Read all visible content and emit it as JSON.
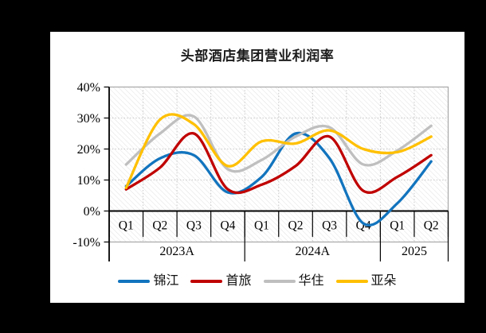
{
  "window": {
    "background_color": "#000000",
    "panel_color": "#ffffff"
  },
  "chart_data": {
    "type": "line",
    "smooth": true,
    "title": "头部酒店集团营业利润率",
    "unit": "%",
    "grid": "dotted",
    "plot_fill": "diagonal-hatch",
    "legend_position": "bottom",
    "y_axis": {
      "min": -10,
      "max": 40,
      "step": 10,
      "ticks": [
        "40%",
        "30%",
        "20%",
        "10%",
        "0%",
        "-10%"
      ],
      "tick_values": [
        40,
        30,
        20,
        10,
        0,
        -10
      ]
    },
    "x_axis": {
      "quarters": [
        "Q1",
        "Q2",
        "Q3",
        "Q4",
        "Q1",
        "Q2",
        "Q3",
        "Q4",
        "Q1",
        "Q2"
      ],
      "year_groups": [
        {
          "label": "2023A",
          "span": 4
        },
        {
          "label": "2024A",
          "span": 4
        },
        {
          "label": "2025",
          "span": 2
        }
      ]
    },
    "categories": [
      "2023Q1",
      "2023Q2",
      "2023Q3",
      "2023Q4",
      "2024Q1",
      "2024Q2",
      "2024Q3",
      "2024Q4",
      "2025Q1",
      "2025Q2"
    ],
    "series": [
      {
        "name": "锦江",
        "color": "#1274BE",
        "values": [
          8,
          17,
          18,
          6,
          11,
          25,
          17,
          -4,
          2.5,
          16
        ]
      },
      {
        "name": "首旅",
        "color": "#C00000",
        "values": [
          7,
          14,
          25,
          7,
          8.5,
          14.5,
          24,
          6.5,
          11,
          18
        ]
      },
      {
        "name": "华住",
        "color": "#BFBFBF",
        "values": [
          15,
          25,
          30.5,
          13.5,
          16.5,
          24,
          27,
          15,
          19.5,
          27.5
        ]
      },
      {
        "name": "亚朵",
        "color": "#FFC000",
        "values": [
          7.5,
          29.5,
          28,
          14.5,
          22.5,
          21.8,
          26,
          20,
          19,
          24
        ]
      }
    ],
    "style": {
      "hatch_color": "#E3E3E3",
      "grid_color": "#C8C8C8",
      "border_color": "#A8A8A8",
      "axis_color": "#000000",
      "line_width": 3.3
    }
  }
}
